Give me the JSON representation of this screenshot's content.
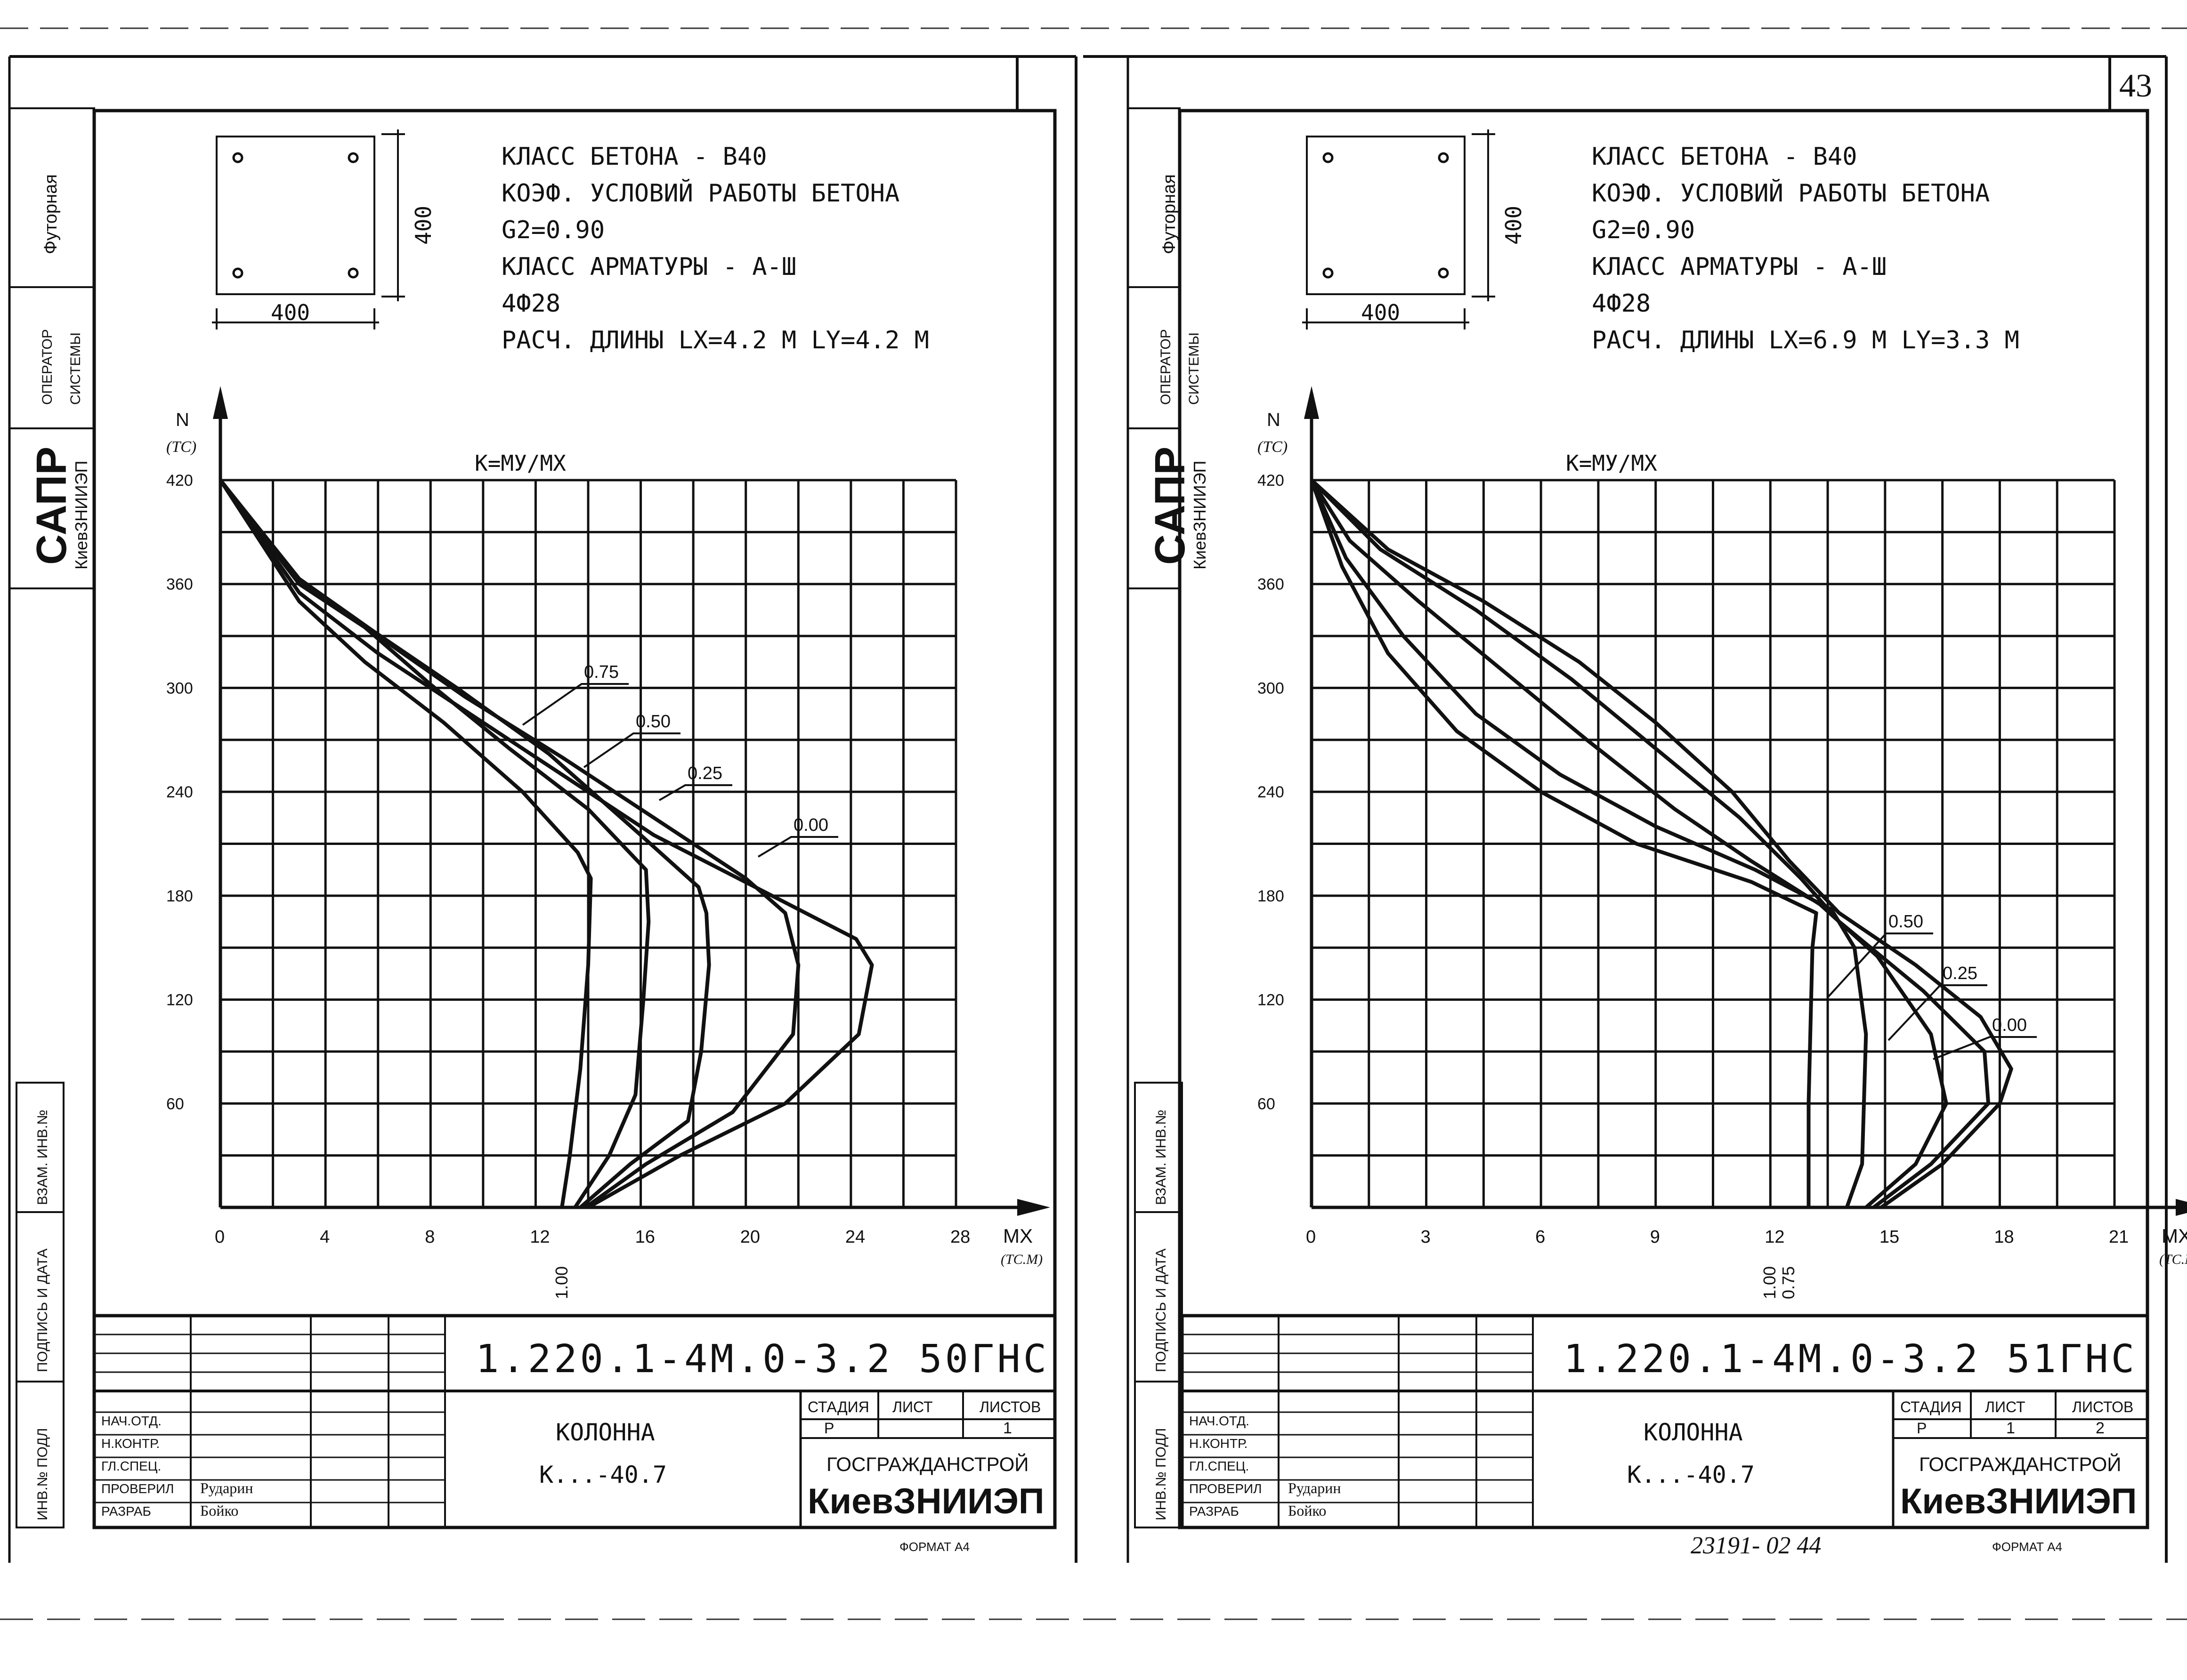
{
  "sheets": [
    {
      "page_number": "",
      "specs": [
        "КЛАСС БЕТОНА - В40",
        "КОЭФ. УСЛОВИЙ РАБОТЫ БЕТОНА",
        "G2=0.90",
        "КЛАСС АРМАТУРЫ - А-Ш",
        "4Ф28",
        "РАСЧ. ДЛИНЫ  LX=4.2 М  LY=4.2 М"
      ],
      "section": {
        "width_label": "400",
        "height_label": "400"
      },
      "stamp": {
        "code": "1.220.1-4М.0-3.2 50ГНС",
        "name_line1": "КОЛОННА",
        "name_line2": "К...-40.7",
        "org_line1": "ГОСГРАЖДАНСТРОЙ",
        "org_line2": "КиевЗНИИЭП",
        "stage_header": "СТАДИЯ",
        "sheet_header": "ЛИСТ",
        "sheets_header": "ЛИСТОВ",
        "stage": "Р",
        "sheet": "",
        "sheets": "1",
        "roles": [
          "НАЧ.ОТД.",
          "Н.КОНТР.",
          "ГЛ.СПЕЦ.",
          "ПРОВЕРИЛ",
          "РАЗРАБ"
        ],
        "names": [
          "",
          "",
          "",
          "Рударин",
          "Бойко"
        ],
        "format": "ФОРМАТ А4",
        "doc_number": ""
      },
      "side": {
        "sapr": "САПР",
        "org": "КиевЗНИИЭП",
        "operator": "ОПЕРАТОР",
        "system": "СИСТЕМЫ",
        "operator_name": "Футорная",
        "stamp1": "ВЗАМ. ИНВ.№",
        "stamp2": "ПОДПИСЬ И ДАТА",
        "stamp3": "ИНВ.№ ПОДЛ"
      }
    },
    {
      "page_number": "43",
      "specs": [
        "КЛАСС БЕТОНА - В40",
        "КОЭФ. УСЛОВИЙ РАБОТЫ БЕТОНА",
        "G2=0.90",
        "КЛАСС АРМАТУРЫ - А-Ш",
        "4Ф28",
        "РАСЧ. ДЛИНЫ  LX=6.9 М  LY=3.3 М"
      ],
      "section": {
        "width_label": "400",
        "height_label": "400"
      },
      "stamp": {
        "code": "1.220.1-4М.0-3.2 51ГНС",
        "name_line1": "КОЛОННА",
        "name_line2": "К...-40.7",
        "org_line1": "ГОСГРАЖДАНСТРОЙ",
        "org_line2": "КиевЗНИИЭП",
        "stage_header": "СТАДИЯ",
        "sheet_header": "ЛИСТ",
        "sheets_header": "ЛИСТОВ",
        "stage": "Р",
        "sheet": "1",
        "sheets": "2",
        "roles": [
          "НАЧ.ОТД.",
          "Н.КОНТР.",
          "ГЛ.СПЕЦ.",
          "ПРОВЕРИЛ",
          "РАЗРАБ"
        ],
        "names": [
          "",
          "",
          "",
          "Рударин",
          "Бойко"
        ],
        "format": "ФОРМАТ А4",
        "doc_number": "23191- 02    44"
      },
      "side": {
        "sapr": "САПР",
        "org": "КиевЗНИИЭП",
        "operator": "ОПЕРАТОР",
        "system": "СИСТЕМЫ",
        "operator_name": "Футорная",
        "stamp1": "ВЗАМ. ИНВ.№",
        "stamp2": "ПОДПИСЬ И ДАТА",
        "stamp3": "ИНВ.№ ПОДЛ"
      }
    }
  ],
  "chart_data": [
    {
      "type": "line",
      "title": "К=МУ/МХ",
      "xlabel": "МХ (ТС.М)",
      "ylabel": "N (ТС)",
      "xlim": [
        0,
        28
      ],
      "ylim": [
        0,
        420
      ],
      "x_ticks": [
        "0",
        "4",
        "8",
        "12",
        "16",
        "20",
        "24",
        "28"
      ],
      "y_ticks": [
        "60",
        "120",
        "180",
        "240",
        "300",
        "360",
        "420"
      ],
      "x_tick_values": [
        0,
        4,
        8,
        12,
        16,
        20,
        24,
        28
      ],
      "y_tick_values": [
        60,
        120,
        180,
        240,
        300,
        360,
        420
      ],
      "grid": true,
      "series": [
        {
          "name": "0.00",
          "points": [
            [
              14,
              0
            ],
            [
              17.5,
              30
            ],
            [
              21.5,
              60
            ],
            [
              24.3,
              100
            ],
            [
              24.8,
              140
            ],
            [
              24.2,
              155
            ],
            [
              21,
              180
            ],
            [
              16.5,
              215
            ],
            [
              13,
              250
            ],
            [
              9.5,
              285
            ],
            [
              6,
              320
            ],
            [
              3,
              355
            ],
            [
              0,
              420
            ]
          ]
        },
        {
          "name": "0.25",
          "points": [
            [
              13.9,
              0
            ],
            [
              16.2,
              25
            ],
            [
              19.5,
              55
            ],
            [
              21.8,
              100
            ],
            [
              22,
              140
            ],
            [
              21.5,
              170
            ],
            [
              20,
              190
            ],
            [
              17,
              220
            ],
            [
              13,
              260
            ],
            [
              9.3,
              295
            ],
            [
              6,
              330
            ],
            [
              3,
              360
            ],
            [
              0,
              420
            ]
          ]
        },
        {
          "name": "0.50",
          "points": [
            [
              13.7,
              0
            ],
            [
              15.6,
              25
            ],
            [
              17.8,
              50
            ],
            [
              18.3,
              90
            ],
            [
              18.6,
              140
            ],
            [
              18.5,
              170
            ],
            [
              18.2,
              185
            ],
            [
              16,
              215
            ],
            [
              12.5,
              262
            ],
            [
              9,
              300
            ],
            [
              5.8,
              333
            ],
            [
              3,
              363
            ],
            [
              0,
              420
            ]
          ]
        },
        {
          "name": "0.75",
          "points": [
            [
              13.5,
              0
            ],
            [
              14.8,
              30
            ],
            [
              15.8,
              65
            ],
            [
              16.1,
              120
            ],
            [
              16.3,
              165
            ],
            [
              16.2,
              195
            ],
            [
              14,
              230
            ],
            [
              11,
              265
            ],
            [
              8,
              302
            ],
            [
              5.5,
              335
            ],
            [
              2.8,
              365
            ],
            [
              0,
              420
            ]
          ]
        },
        {
          "name": "1.00",
          "points": [
            [
              13,
              0
            ],
            [
              13.3,
              30
            ],
            [
              13.7,
              80
            ],
            [
              14,
              140
            ],
            [
              14.1,
              190
            ],
            [
              13.6,
              205
            ],
            [
              11.5,
              240
            ],
            [
              8.5,
              280
            ],
            [
              5.5,
              315
            ],
            [
              3,
              350
            ],
            [
              0,
              420
            ]
          ]
        }
      ],
      "labels": [
        {
          "text": "0.75",
          "series": "0.75"
        },
        {
          "text": "0.50",
          "series": "0.50"
        },
        {
          "text": "0.25",
          "series": "0.25"
        },
        {
          "text": "0.00",
          "series": "0.00"
        }
      ],
      "bottom_labels": [
        "1.00"
      ]
    },
    {
      "type": "line",
      "title": "К=МУ/МХ",
      "xlabel": "МХ (ТС.М)",
      "ylabel": "N (ТС)",
      "xlim": [
        0,
        21
      ],
      "ylim": [
        0,
        420
      ],
      "x_ticks": [
        "0",
        "3",
        "6",
        "9",
        "12",
        "15",
        "18",
        "21"
      ],
      "y_ticks": [
        "60",
        "120",
        "180",
        "240",
        "300",
        "360",
        "420"
      ],
      "x_tick_values": [
        0,
        3,
        6,
        9,
        12,
        15,
        18,
        21
      ],
      "y_tick_values": [
        60,
        120,
        180,
        240,
        300,
        360,
        420
      ],
      "grid": true,
      "series": [
        {
          "name": "0.00",
          "points": [
            [
              14.9,
              0
            ],
            [
              16.5,
              25
            ],
            [
              18,
              60
            ],
            [
              18.3,
              80
            ],
            [
              17.5,
              110
            ],
            [
              15.8,
              140
            ],
            [
              13.8,
              170
            ],
            [
              12.5,
              200
            ],
            [
              11,
              240
            ],
            [
              9,
              280
            ],
            [
              7,
              315
            ],
            [
              4.5,
              350
            ],
            [
              2,
              380
            ],
            [
              0,
              420
            ]
          ]
        },
        {
          "name": "0.25",
          "points": [
            [
              14.7,
              0
            ],
            [
              16.2,
              25
            ],
            [
              17.7,
              60
            ],
            [
              17.6,
              90
            ],
            [
              16,
              125
            ],
            [
              13.8,
              165
            ],
            [
              12.8,
              190
            ],
            [
              11.2,
              225
            ],
            [
              9,
              265
            ],
            [
              6.8,
              305
            ],
            [
              4.3,
              345
            ],
            [
              1.8,
              380
            ],
            [
              0,
              420
            ]
          ]
        },
        {
          "name": "0.50",
          "points": [
            [
              14.5,
              0
            ],
            [
              15.8,
              25
            ],
            [
              16.6,
              60
            ],
            [
              16.2,
              100
            ],
            [
              14.8,
              145
            ],
            [
              13.3,
              175
            ],
            [
              11.5,
              200
            ],
            [
              9.5,
              230
            ],
            [
              7.2,
              270
            ],
            [
              5,
              310
            ],
            [
              2.8,
              350
            ],
            [
              1,
              385
            ],
            [
              0,
              420
            ]
          ]
        },
        {
          "name": "0.75",
          "points": [
            [
              14,
              0
            ],
            [
              14.4,
              25
            ],
            [
              14.5,
              100
            ],
            [
              14.2,
              150
            ],
            [
              13.6,
              172
            ],
            [
              11.6,
              195
            ],
            [
              9,
              220
            ],
            [
              6.5,
              250
            ],
            [
              4.3,
              285
            ],
            [
              2.4,
              330
            ],
            [
              0.9,
              375
            ],
            [
              0,
              420
            ]
          ]
        },
        {
          "name": "1.00",
          "points": [
            [
              13,
              0
            ],
            [
              13,
              60
            ],
            [
              13.1,
              150
            ],
            [
              13.2,
              170
            ],
            [
              11.5,
              188
            ],
            [
              8.5,
              210
            ],
            [
              6,
              240
            ],
            [
              3.8,
              275
            ],
            [
              2,
              320
            ],
            [
              0.8,
              370
            ],
            [
              0,
              420
            ]
          ]
        }
      ],
      "labels": [
        {
          "text": "0.50",
          "series": "0.50"
        },
        {
          "text": "0.25",
          "series": "0.25"
        },
        {
          "text": "0.00",
          "series": "0.00"
        }
      ],
      "bottom_labels": [
        "1.00",
        "0.75"
      ]
    }
  ]
}
